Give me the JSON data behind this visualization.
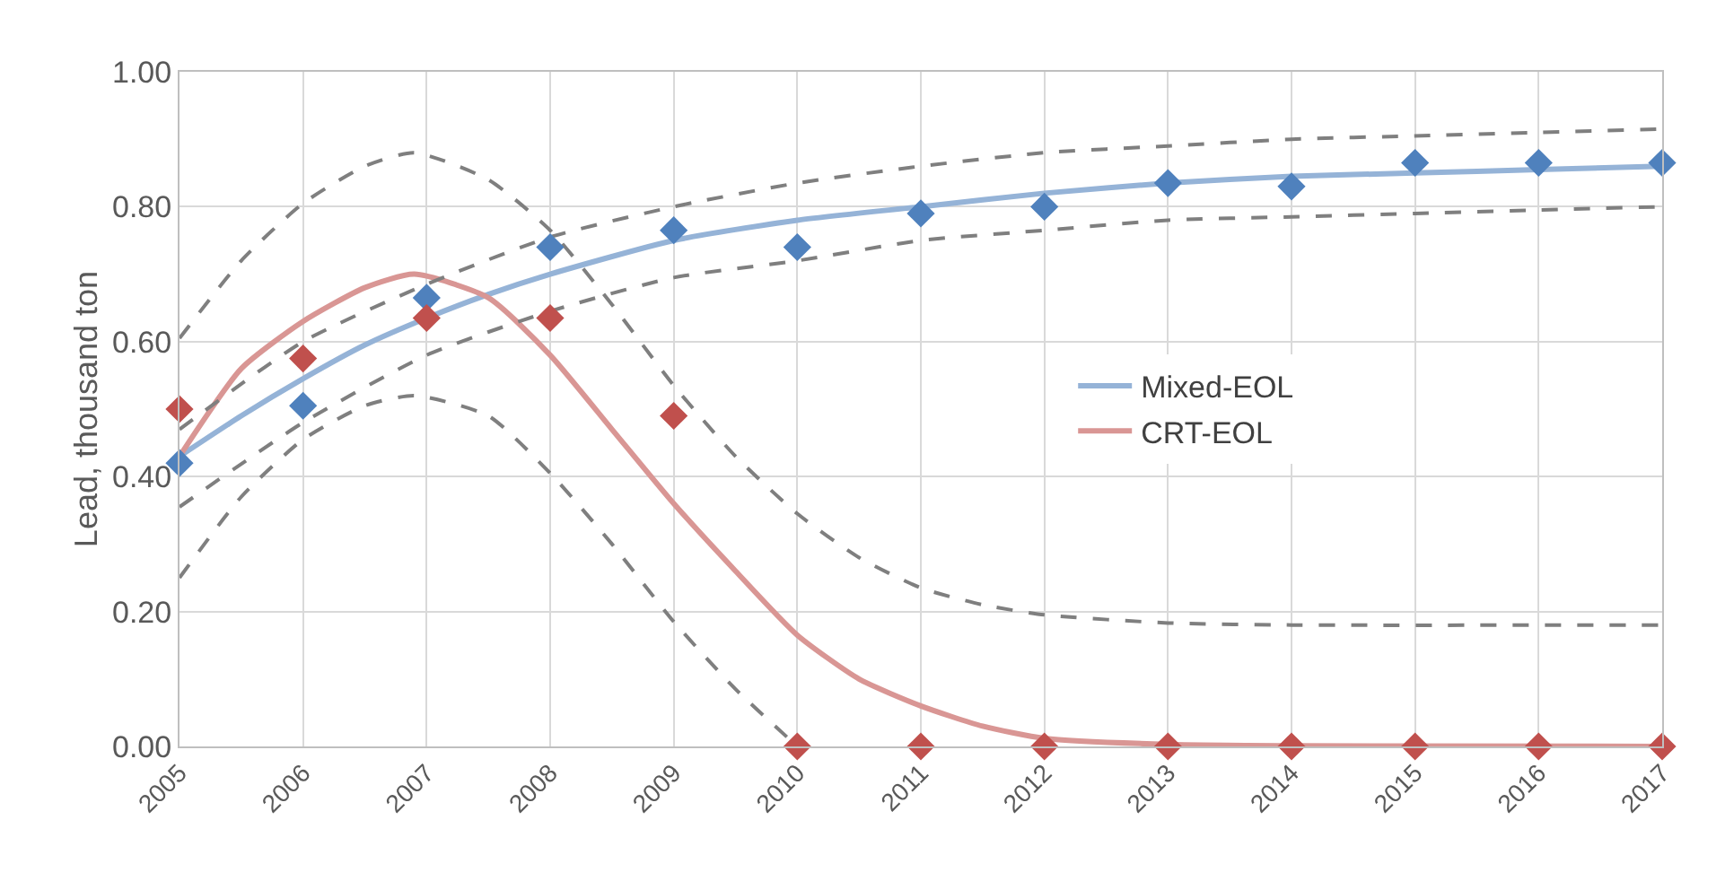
{
  "chart_data": {
    "type": "line",
    "ylabel": "Lead, thousand ton",
    "xlim": [
      2005,
      2017
    ],
    "xticks": [
      2005,
      2006,
      2007,
      2008,
      2009,
      2010,
      2011,
      2012,
      2013,
      2014,
      2015,
      2016,
      2017
    ],
    "ylim": [
      0,
      1
    ],
    "yticks": [
      {
        "value": 0,
        "label": "0.00"
      },
      {
        "value": 0.2,
        "label": "0.20"
      },
      {
        "value": 0.4,
        "label": "0.40"
      },
      {
        "value": 0.6,
        "label": "0.60"
      },
      {
        "value": 0.8,
        "label": "0.80"
      },
      {
        "value": 1,
        "label": "1.00"
      }
    ],
    "grid": true,
    "legend": "right",
    "series": [
      {
        "name": "Mixed-EOL",
        "color": "#95b3d7",
        "line_style": "solid",
        "marker": "none",
        "x": [
          2005,
          2005.5,
          2006,
          2006.5,
          2007,
          2007.5,
          2008,
          2009,
          2010,
          2011,
          2012,
          2013,
          2014,
          2015,
          2016,
          2017
        ],
        "values": [
          0.43,
          0.49,
          0.545,
          0.595,
          0.635,
          0.67,
          0.7,
          0.75,
          0.78,
          0.8,
          0.82,
          0.835,
          0.845,
          0.85,
          0.855,
          0.86
        ]
      },
      {
        "name": "CRT-EOL",
        "color": "#d99694",
        "line_style": "solid",
        "marker": "none",
        "x": [
          2005,
          2005.5,
          2006,
          2006.5,
          2006.9,
          2007.5,
          2008,
          2008.5,
          2009,
          2009.5,
          2010,
          2010.5,
          2011,
          2011.5,
          2012,
          2013,
          2014,
          2017
        ],
        "values": [
          0.43,
          0.56,
          0.63,
          0.68,
          0.7,
          0.665,
          0.58,
          0.47,
          0.36,
          0.26,
          0.165,
          0.1,
          0.06,
          0.03,
          0.012,
          0.003,
          0.001,
          0
        ]
      },
      {
        "type": "line",
        "color": "#7f7f7f",
        "line_style": "dashed",
        "marker": "none",
        "x": [
          2005,
          2006,
          2007,
          2008,
          2009,
          2010,
          2011,
          2012,
          2013,
          2014,
          2015,
          2016,
          2017
        ],
        "values": [
          0.47,
          0.6,
          0.685,
          0.755,
          0.8,
          0.835,
          0.86,
          0.88,
          0.89,
          0.9,
          0.905,
          0.91,
          0.915
        ]
      },
      {
        "type": "line",
        "color": "#7f7f7f",
        "line_style": "dashed",
        "marker": "none",
        "x": [
          2005,
          2006,
          2007,
          2008,
          2009,
          2010,
          2011,
          2012,
          2013,
          2014,
          2015,
          2016,
          2017
        ],
        "values": [
          0.355,
          0.48,
          0.58,
          0.645,
          0.695,
          0.72,
          0.75,
          0.765,
          0.78,
          0.785,
          0.79,
          0.795,
          0.8
        ]
      },
      {
        "type": "line",
        "color": "#7f7f7f",
        "line_style": "dashed",
        "marker": "none",
        "x": [
          2005,
          2005.5,
          2006,
          2006.5,
          2006.9,
          2007.5,
          2008,
          2008.5,
          2009,
          2009.5,
          2010,
          2010.5,
          2011,
          2011.5,
          2012,
          2013,
          2014,
          2017
        ],
        "values": [
          0.605,
          0.72,
          0.805,
          0.86,
          0.88,
          0.84,
          0.765,
          0.655,
          0.535,
          0.43,
          0.345,
          0.28,
          0.235,
          0.21,
          0.195,
          0.183,
          0.18,
          0.18
        ]
      },
      {
        "type": "line",
        "color": "#7f7f7f",
        "line_style": "dashed",
        "marker": "none",
        "x": [
          2005,
          2005.5,
          2006,
          2006.5,
          2006.9,
          2007.5,
          2008,
          2008.5,
          2009,
          2009.5,
          2010
        ],
        "values": [
          0.25,
          0.37,
          0.455,
          0.505,
          0.52,
          0.49,
          0.405,
          0.3,
          0.185,
          0.085,
          0
        ]
      },
      {
        "type": "scatter",
        "color": "#4f81bd",
        "marker": "diamond",
        "x": [
          2005,
          2006,
          2007,
          2008,
          2009,
          2010,
          2011,
          2012,
          2013,
          2014,
          2015,
          2016,
          2017
        ],
        "values": [
          0.42,
          0.505,
          0.665,
          0.74,
          0.765,
          0.74,
          0.79,
          0.8,
          0.835,
          0.83,
          0.865,
          0.865,
          0.865
        ]
      },
      {
        "type": "scatter",
        "color": "#c0504d",
        "marker": "diamond",
        "x": [
          2005,
          2006,
          2007,
          2008,
          2009,
          2010,
          2011,
          2012,
          2013,
          2014,
          2015,
          2016,
          2017
        ],
        "values": [
          0.5,
          0.575,
          0.635,
          0.635,
          0.49,
          0,
          0,
          0,
          0,
          0,
          0,
          0,
          0
        ]
      }
    ]
  }
}
